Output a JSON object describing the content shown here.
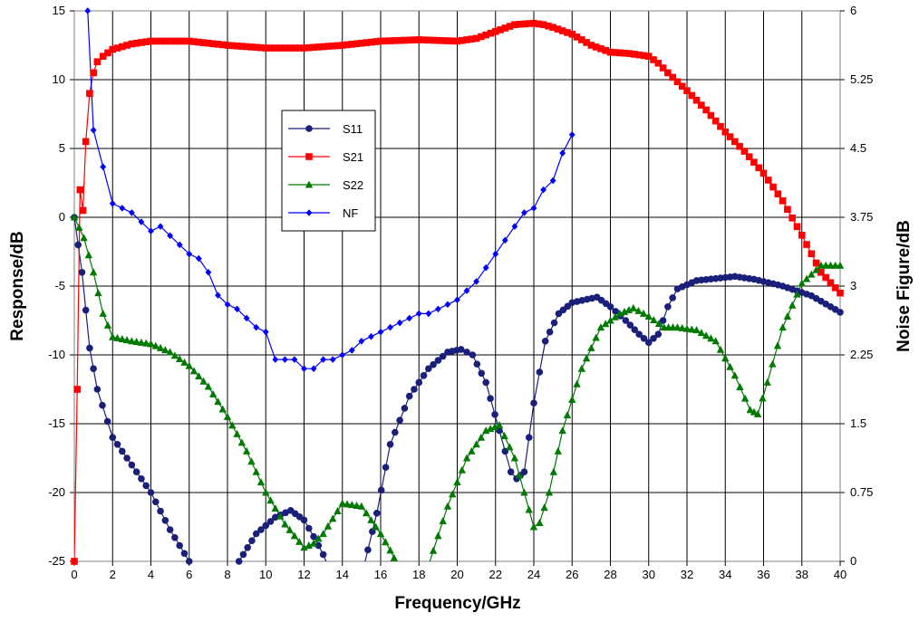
{
  "chart_data": {
    "type": "line",
    "xlabel": "Frequency/GHz",
    "ylabel": "Response/dB",
    "y2label": "Noise Figure/dB",
    "xlim": [
      0,
      40
    ],
    "ylim": [
      -25,
      15
    ],
    "y2lim": [
      0,
      6
    ],
    "x_ticks": [
      0,
      2,
      4,
      6,
      8,
      10,
      12,
      14,
      16,
      18,
      20,
      22,
      24,
      26,
      28,
      30,
      32,
      34,
      36,
      38,
      40
    ],
    "y_ticks": [
      -25,
      -20,
      -15,
      -10,
      -5,
      0,
      5,
      10,
      15
    ],
    "y2_ticks": [
      "0",
      "0.75",
      "1.5",
      "2.25",
      "3",
      "3.75",
      "4.5",
      "5.25",
      "6"
    ],
    "grid": true,
    "legend_position": "center-left",
    "series": [
      {
        "name": "S11",
        "color": "#1a1f7a",
        "marker": "circle",
        "axis": "left",
        "x": [
          0,
          0.4,
          0.8,
          1.2,
          2,
          3,
          4,
          5,
          6,
          7,
          8.6,
          9.5,
          10.5,
          11.3,
          12,
          12.5,
          13,
          13.3,
          15.1,
          15.8,
          16.5,
          17.5,
          18.5,
          19.5,
          20.2,
          20.8,
          21.5,
          22.2,
          22.8,
          23.1,
          23.5,
          24,
          24.6,
          25.3,
          26,
          27.3,
          28,
          28.8,
          29.5,
          30,
          30.5,
          31,
          31.5,
          32.5,
          34.5,
          35.5,
          37,
          38.5,
          40
        ],
        "y": [
          0,
          -4,
          -9.5,
          -12.5,
          -16,
          -18,
          -20,
          -22.7,
          -25,
          -26.5,
          -25,
          -23,
          -21.8,
          -21.3,
          -22,
          -23.2,
          -24.5,
          -25.5,
          -25.5,
          -21.5,
          -16.5,
          -13,
          -11,
          -9.8,
          -9.6,
          -10,
          -12,
          -15.5,
          -18.5,
          -19,
          -18.5,
          -13.5,
          -9,
          -7,
          -6.2,
          -5.8,
          -6.5,
          -7.5,
          -8.5,
          -9.1,
          -8.5,
          -6.5,
          -5.2,
          -4.6,
          -4.3,
          -4.5,
          -5,
          -5.7,
          -6.9
        ]
      },
      {
        "name": "S21",
        "color": "#ff0000",
        "marker": "square",
        "axis": "left",
        "x": [
          0,
          0.15,
          0.3,
          0.45,
          0.6,
          0.8,
          1,
          1.2,
          1.5,
          2,
          3,
          4,
          6,
          8,
          10,
          12,
          14,
          16,
          18,
          20,
          21,
          22,
          23,
          24,
          24.5,
          25,
          26,
          27,
          28,
          29,
          30,
          30.5,
          31,
          32,
          33,
          34,
          35,
          36,
          37,
          38,
          39,
          40
        ],
        "y": [
          -25,
          -12.5,
          2,
          0.5,
          5.5,
          9,
          10.5,
          11.3,
          11.7,
          12.2,
          12.6,
          12.8,
          12.8,
          12.5,
          12.3,
          12.3,
          12.5,
          12.8,
          12.9,
          12.8,
          13,
          13.5,
          14,
          14.1,
          14,
          13.8,
          13.3,
          12.5,
          12,
          11.9,
          11.7,
          11.2,
          10.5,
          9.2,
          7.8,
          6.2,
          4.8,
          3.2,
          1.2,
          -1.3,
          -4,
          -5.5
        ]
      },
      {
        "name": "S22",
        "color": "#007a00",
        "marker": "triangle",
        "axis": "left",
        "x": [
          0,
          0.5,
          1,
          1.5,
          2,
          3,
          4,
          5,
          6,
          7,
          8,
          9,
          10,
          11,
          12,
          12.5,
          13,
          14,
          15,
          16,
          16.5,
          16.9,
          18.5,
          19.5,
          20.5,
          21.5,
          22.2,
          23,
          23.5,
          24,
          24.3,
          24.8,
          25.5,
          26.5,
          27.5,
          28.5,
          29.2,
          30,
          30.8,
          31.5,
          32.5,
          33.5,
          34.5,
          35.3,
          35.7,
          36.2,
          37,
          38,
          39,
          40
        ],
        "y": [
          0,
          -1.5,
          -4,
          -7,
          -8.7,
          -9,
          -9.2,
          -9.8,
          -10.8,
          -12.3,
          -14.5,
          -17,
          -20,
          -22.3,
          -24,
          -23.7,
          -23,
          -20.8,
          -21,
          -23,
          -24.2,
          -25.3,
          -25.3,
          -21,
          -17.5,
          -15.5,
          -15.1,
          -17.5,
          -20,
          -22.5,
          -22.2,
          -20,
          -15.5,
          -11,
          -8,
          -7,
          -6.6,
          -7.2,
          -8,
          -8,
          -8.2,
          -9,
          -11.5,
          -14,
          -14.3,
          -12,
          -8,
          -4.8,
          -3.5,
          -3.5
        ]
      },
      {
        "name": "NF",
        "color": "#0000ff",
        "marker": "diamond",
        "axis": "right",
        "x": [
          0.7,
          1,
          1.5,
          2,
          2.5,
          3,
          3.5,
          4,
          4.5,
          5,
          5.5,
          6,
          6.5,
          7,
          7.5,
          8,
          8.5,
          9,
          9.5,
          10,
          10.5,
          11,
          11.5,
          12,
          12.5,
          13,
          13.5,
          14,
          14.5,
          15,
          15.5,
          16,
          16.5,
          17,
          17.5,
          18,
          18.5,
          19,
          19.5,
          20,
          20.5,
          21,
          21.5,
          22,
          22.5,
          23,
          23.5,
          24,
          24.5,
          25,
          25.5,
          26
        ],
        "y": [
          6,
          4.7,
          4.3,
          3.9,
          3.85,
          3.8,
          3.7,
          3.6,
          3.65,
          3.55,
          3.45,
          3.35,
          3.3,
          3.15,
          2.9,
          2.8,
          2.75,
          2.65,
          2.55,
          2.5,
          2.2,
          2.2,
          2.2,
          2.1,
          2.1,
          2.2,
          2.2,
          2.25,
          2.3,
          2.4,
          2.45,
          2.5,
          2.55,
          2.6,
          2.65,
          2.7,
          2.7,
          2.75,
          2.8,
          2.85,
          2.95,
          3.05,
          3.2,
          3.35,
          3.5,
          3.65,
          3.8,
          3.85,
          4.05,
          4.15,
          4.45,
          4.65
        ]
      }
    ]
  }
}
